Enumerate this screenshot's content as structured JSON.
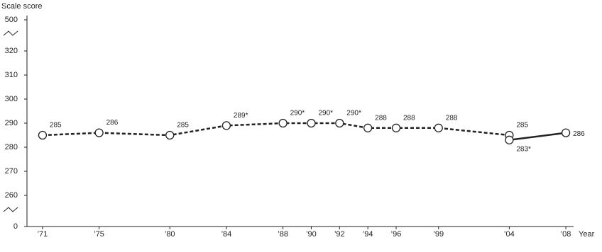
{
  "chart_data": {
    "type": "line",
    "y_label": "Scale score",
    "x_label": "Year",
    "xlim": [
      1969.9,
      2009
    ],
    "xticks": [
      {
        "value": 1971,
        "label": "’71"
      },
      {
        "value": 1975,
        "label": "’75"
      },
      {
        "value": 1980,
        "label": "’80"
      },
      {
        "value": 1984,
        "label": "’84"
      },
      {
        "value": 1988,
        "label": "’88"
      },
      {
        "value": 1990,
        "label": "’90"
      },
      {
        "value": 1992,
        "label": "’92"
      },
      {
        "value": 1994,
        "label": "’94"
      },
      {
        "value": 1996,
        "label": "’96"
      },
      {
        "value": 1999,
        "label": "’99"
      },
      {
        "value": 2004,
        "label": "’04"
      },
      {
        "value": 2008,
        "label": "’08"
      }
    ],
    "ylim": [
      0,
      500
    ],
    "yticks": [
      0,
      260,
      270,
      280,
      290,
      300,
      310,
      320,
      500
    ],
    "broken_axis": true,
    "series": [
      {
        "color": "#222222",
        "dashed": true,
        "x": [
          1971,
          1975,
          1980,
          1984,
          1988,
          1990,
          1992,
          1994,
          1996,
          1999,
          2004
        ],
        "values": [
          285,
          286,
          285,
          289,
          290,
          290,
          290,
          288,
          288,
          288,
          285
        ],
        "value_labels": [
          "285",
          "286",
          "285",
          "289*",
          "290*",
          "290*",
          "290*",
          "288",
          "288",
          "288",
          "285"
        ]
      },
      {
        "color": "#222222",
        "dashed": false,
        "x": [
          2004,
          2008
        ],
        "values": [
          283,
          286
        ],
        "value_labels": [
          "283*",
          "286"
        ]
      }
    ]
  }
}
